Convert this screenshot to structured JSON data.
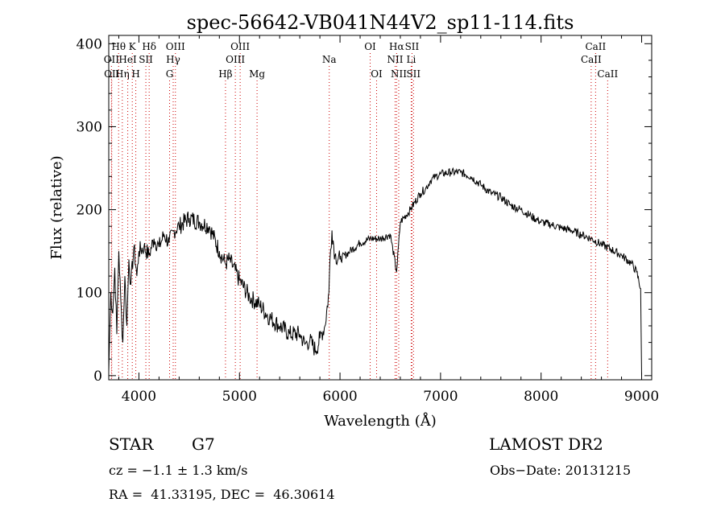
{
  "chart_data": {
    "type": "line",
    "title": "spec-56642-VB041N44V2_sp11-114.fits",
    "xlabel": "Wavelength (Å)",
    "ylabel": "Flux (relative)",
    "xlim": [
      3700,
      9100
    ],
    "ylim": [
      -5,
      410
    ],
    "xticks": [
      4000,
      5000,
      6000,
      7000,
      8000,
      9000
    ],
    "yticks": [
      0,
      100,
      200,
      300,
      400
    ],
    "grid": false,
    "series": [
      {
        "color": "#000000",
        "x": [
          3700,
          3720,
          3740,
          3760,
          3780,
          3800,
          3820,
          3840,
          3860,
          3880,
          3900,
          3920,
          3950,
          3980,
          4000,
          4050,
          4100,
          4150,
          4200,
          4250,
          4300,
          4350,
          4400,
          4500,
          4600,
          4700,
          4800,
          4860,
          4900,
          5000,
          5100,
          5200,
          5300,
          5400,
          5500,
          5600,
          5650,
          5700,
          5760,
          5800,
          5850,
          5890,
          5900,
          5920,
          5950,
          6000,
          6100,
          6200,
          6300,
          6400,
          6500,
          6563,
          6600,
          6700,
          6800,
          6850,
          6900,
          6950,
          7000,
          7100,
          7200,
          7300,
          7400,
          7500,
          7600,
          7700,
          7800,
          7900,
          8000,
          8100,
          8200,
          8300,
          8400,
          8500,
          8600,
          8700,
          8800,
          8900,
          8950,
          8990,
          9000
        ],
        "y": [
          5,
          100,
          75,
          130,
          50,
          150,
          90,
          40,
          120,
          60,
          140,
          110,
          155,
          120,
          150,
          155,
          145,
          165,
          155,
          170,
          160,
          175,
          180,
          190,
          185,
          180,
          150,
          135,
          140,
          115,
          95,
          85,
          70,
          60,
          50,
          50,
          38,
          42,
          30,
          45,
          60,
          100,
          140,
          175,
          145,
          140,
          150,
          160,
          165,
          165,
          170,
          125,
          185,
          200,
          220,
          225,
          235,
          240,
          243,
          245,
          245,
          240,
          230,
          220,
          215,
          205,
          200,
          192,
          185,
          182,
          178,
          175,
          170,
          165,
          158,
          152,
          145,
          135,
          125,
          105,
          0
        ]
      }
    ],
    "lines": [
      {
        "label": "Hθ",
        "wl": 3798,
        "row": 1
      },
      {
        "label": "OII",
        "wl": 3727,
        "row": 2
      },
      {
        "label": "Hη",
        "wl": 3835,
        "row": 3
      },
      {
        "label": "OII",
        "wl": 3730,
        "row": 3
      },
      {
        "label": "K",
        "wl": 3934,
        "row": 1
      },
      {
        "label": "HeI",
        "wl": 3889,
        "row": 2
      },
      {
        "label": "SII",
        "wl": 4069,
        "row": 2
      },
      {
        "label": "H",
        "wl": 3969,
        "row": 3
      },
      {
        "label": "Hδ",
        "wl": 4102,
        "row": 1
      },
      {
        "label": "OIII",
        "wl": 4363,
        "row": 1
      },
      {
        "label": "Hγ",
        "wl": 4341,
        "row": 2
      },
      {
        "label": "G",
        "wl": 4305,
        "row": 3
      },
      {
        "label": "OIII",
        "wl": 5007,
        "row": 1
      },
      {
        "label": "OIII",
        "wl": 4959,
        "row": 2
      },
      {
        "label": "Hβ",
        "wl": 4861,
        "row": 3
      },
      {
        "label": "Mg",
        "wl": 5175,
        "row": 3
      },
      {
        "label": "Na",
        "wl": 5893,
        "row": 2
      },
      {
        "label": "OI",
        "wl": 6300,
        "row": 1
      },
      {
        "label": "OI",
        "wl": 6364,
        "row": 3
      },
      {
        "label": "Hα",
        "wl": 6563,
        "row": 1
      },
      {
        "label": "SII",
        "wl": 6716,
        "row": 1
      },
      {
        "label": "NII",
        "wl": 6548,
        "row": 2
      },
      {
        "label": "Li",
        "wl": 6708,
        "row": 2
      },
      {
        "label": "NII",
        "wl": 6584,
        "row": 3
      },
      {
        "label": "SII",
        "wl": 6731,
        "row": 3
      },
      {
        "label": "CaII",
        "wl": 8542,
        "row": 1
      },
      {
        "label": "CaII",
        "wl": 8498,
        "row": 2
      },
      {
        "label": "CaII",
        "wl": 8662,
        "row": 3
      }
    ],
    "line_marker_color": "#cc0000"
  },
  "info": {
    "obj_type": "STAR",
    "obj_class": "G7",
    "cz": "cz = −1.1 ± 1.3 km/s",
    "radec": "RA =  41.33195, DEC =  46.30614",
    "release": "LAMOST DR2",
    "obs_date": "Obs−Date: 20131215"
  }
}
